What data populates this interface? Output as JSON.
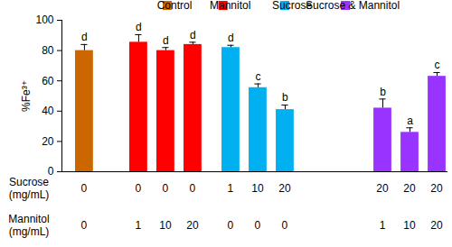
{
  "chart_data": {
    "type": "bar",
    "y_label": "%Fe³⁺",
    "ylim": [
      0,
      100
    ],
    "yticks": [
      0,
      20,
      40,
      60,
      80,
      100
    ],
    "legend": "top",
    "series": [
      {
        "name": "Control",
        "color": "#cc6600",
        "values": [
          80
        ],
        "errors": [
          4
        ],
        "letters": [
          "d"
        ]
      },
      {
        "name": "Mannitol",
        "color": "#ff0000",
        "values": [
          85.5,
          80,
          84
        ],
        "errors": [
          5,
          2,
          1.5
        ],
        "letters": [
          "d",
          "d",
          "d"
        ]
      },
      {
        "name": "Sucrose",
        "color": "#00b0f0",
        "values": [
          82,
          55.5,
          41
        ],
        "errors": [
          1.5,
          2.5,
          3
        ],
        "letters": [
          "d",
          "c",
          "b"
        ]
      },
      {
        "name": "Sucrose & Mannitol",
        "color": "#9933ff",
        "values": [
          42,
          26,
          63
        ],
        "errors": [
          6,
          3,
          2.5
        ],
        "letters": [
          "b",
          "a",
          "c"
        ]
      }
    ],
    "x_table": [
      {
        "label": "Sucrose\n(mg/mL)",
        "values": [
          0,
          0,
          0,
          0,
          1,
          10,
          20,
          20,
          20,
          20
        ]
      },
      {
        "label": "Mannitol\n(mg/mL)",
        "values": [
          0,
          1,
          10,
          20,
          0,
          0,
          0,
          1,
          10,
          20
        ]
      }
    ]
  }
}
